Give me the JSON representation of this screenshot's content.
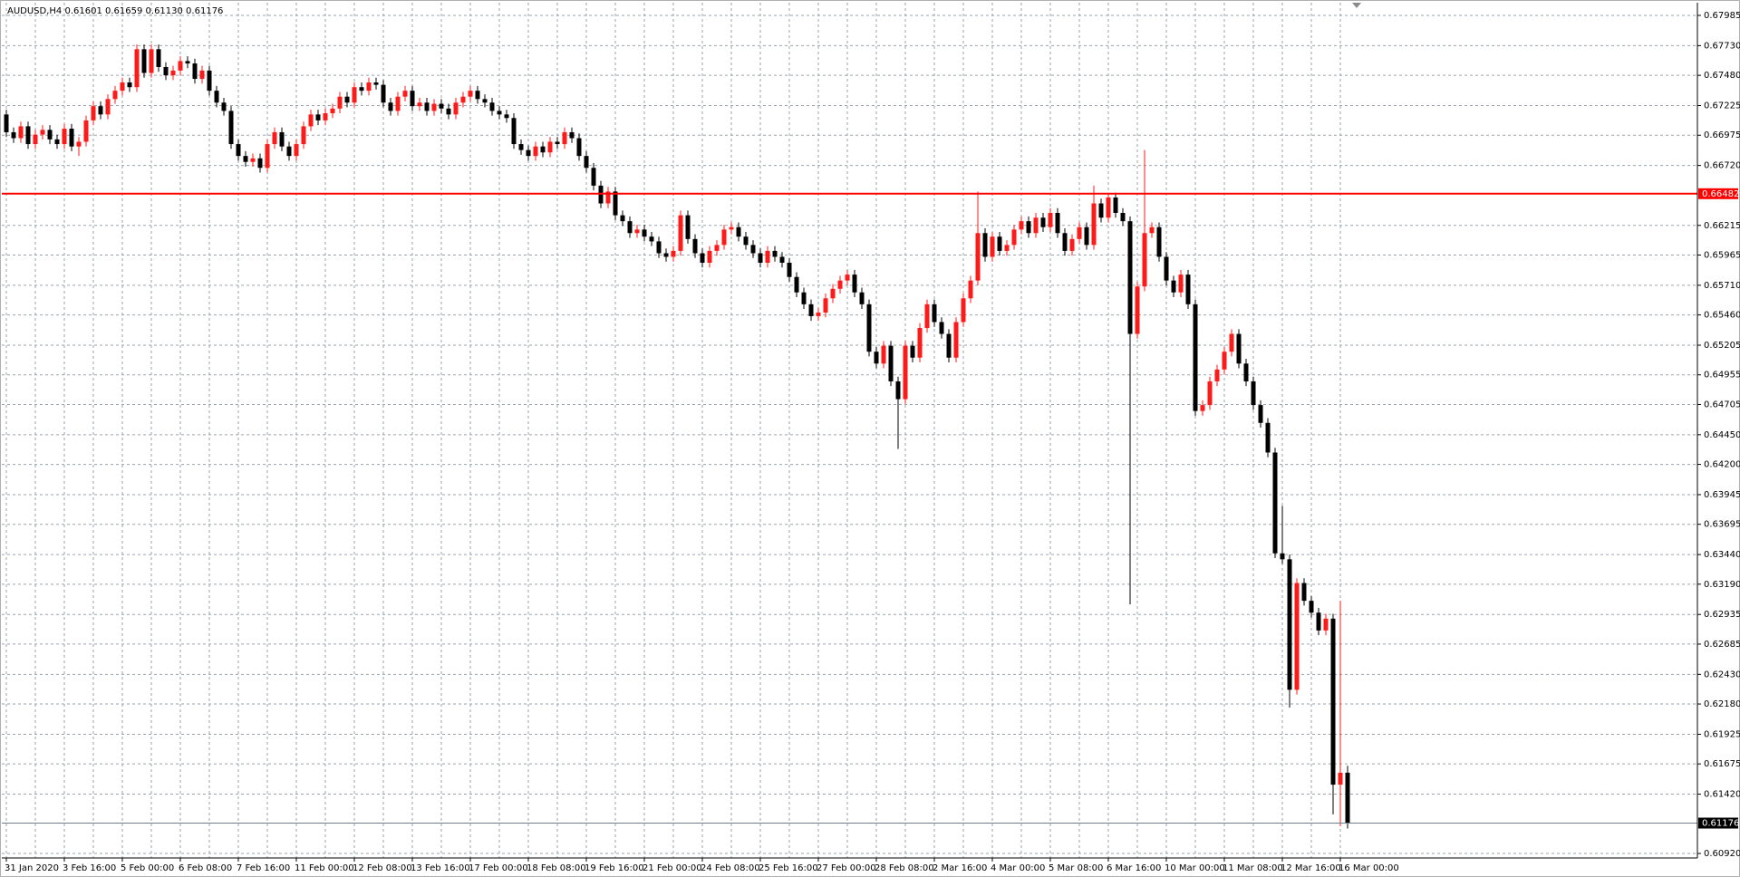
{
  "chart_data": {
    "type": "candlestick",
    "title": "AUDUSD,H4  0.61601 0.61659 0.61130 0.61176",
    "up_color": "#ff1a1a",
    "down_color": "#000000",
    "grid": true,
    "ylim": [
      0.60882,
      0.68092
    ],
    "yticks": [
      {
        "value": 0.67985,
        "label": "0.67985"
      },
      {
        "value": 0.6773,
        "label": "0.67730"
      },
      {
        "value": 0.6748,
        "label": "0.67480"
      },
      {
        "value": 0.67225,
        "label": "0.67225"
      },
      {
        "value": 0.66975,
        "label": "0.66975"
      },
      {
        "value": 0.6672,
        "label": "0.66720"
      },
      {
        "value": 0.66215,
        "label": "0.66215"
      },
      {
        "value": 0.65965,
        "label": "0.65965"
      },
      {
        "value": 0.6571,
        "label": "0.65710"
      },
      {
        "value": 0.6546,
        "label": "0.65460"
      },
      {
        "value": 0.65205,
        "label": "0.65205"
      },
      {
        "value": 0.64955,
        "label": "0.64955"
      },
      {
        "value": 0.64705,
        "label": "0.64705"
      },
      {
        "value": 0.6445,
        "label": "0.64450"
      },
      {
        "value": 0.642,
        "label": "0.64200"
      },
      {
        "value": 0.63945,
        "label": "0.63945"
      },
      {
        "value": 0.63695,
        "label": "0.63695"
      },
      {
        "value": 0.6344,
        "label": "0.63440"
      },
      {
        "value": 0.6319,
        "label": "0.63190"
      },
      {
        "value": 0.62935,
        "label": "0.62935"
      },
      {
        "value": 0.62685,
        "label": "0.62685"
      },
      {
        "value": 0.6243,
        "label": "0.62430"
      },
      {
        "value": 0.6218,
        "label": "0.62180"
      },
      {
        "value": 0.61925,
        "label": "0.61925"
      },
      {
        "value": 0.61675,
        "label": "0.61675"
      },
      {
        "value": 0.6142,
        "label": "0.61420"
      },
      {
        "value": 0.6092,
        "label": "0.60920"
      }
    ],
    "level_line": {
      "value": 0.66482,
      "color": "#ff0000"
    },
    "price_line": {
      "value": 0.61176,
      "color": "#6f8191"
    },
    "categories": [
      "31 Jan 2020",
      null,
      null,
      null,
      null,
      null,
      null,
      null,
      "3 Feb 16:00",
      null,
      null,
      null,
      null,
      null,
      null,
      null,
      "5 Feb 00:00",
      null,
      null,
      null,
      null,
      null,
      null,
      null,
      "6 Feb 08:00",
      null,
      null,
      null,
      null,
      null,
      null,
      null,
      "7 Feb 16:00",
      null,
      null,
      null,
      null,
      null,
      null,
      null,
      "11 Feb 00:00",
      null,
      null,
      null,
      null,
      null,
      null,
      null,
      "12 Feb 08:00",
      null,
      null,
      null,
      null,
      null,
      null,
      null,
      "13 Feb 16:00",
      null,
      null,
      null,
      null,
      null,
      null,
      null,
      "17 Feb 00:00",
      null,
      null,
      null,
      null,
      null,
      null,
      null,
      "18 Feb 08:00",
      null,
      null,
      null,
      null,
      null,
      null,
      null,
      "19 Feb 16:00",
      null,
      null,
      null,
      null,
      null,
      null,
      null,
      "21 Feb 00:00",
      null,
      null,
      null,
      null,
      null,
      null,
      null,
      "24 Feb 08:00",
      null,
      null,
      null,
      null,
      null,
      null,
      null,
      "25 Feb 16:00",
      null,
      null,
      null,
      null,
      null,
      null,
      null,
      "27 Feb 00:00",
      null,
      null,
      null,
      null,
      null,
      null,
      null,
      "28 Feb 08:00",
      null,
      null,
      null,
      null,
      null,
      null,
      null,
      "2 Mar 16:00",
      null,
      null,
      null,
      null,
      null,
      null,
      null,
      "4 Mar 00:00",
      null,
      null,
      null,
      null,
      null,
      null,
      null,
      "5 Mar 08:00",
      null,
      null,
      null,
      null,
      null,
      null,
      null,
      "6 Mar 16:00",
      null,
      null,
      null,
      null,
      null,
      null,
      null,
      "10 Mar 00:00",
      null,
      null,
      null,
      null,
      null,
      null,
      null,
      "11 Mar 08:00",
      null,
      null,
      null,
      null,
      null,
      null,
      null,
      "12 Mar 16:00",
      null,
      null,
      null,
      null,
      null,
      null,
      null,
      "16 Mar 00:00",
      null
    ],
    "candles": [
      [
        0.6715,
        0.6719,
        0.6696,
        0.67
      ],
      [
        0.67,
        0.6704,
        0.6691,
        0.6695
      ],
      [
        0.6695,
        0.6709,
        0.6691,
        0.6705
      ],
      [
        0.6705,
        0.6709,
        0.6686,
        0.669
      ],
      [
        0.669,
        0.6702,
        0.6686,
        0.6698
      ],
      [
        0.6698,
        0.6706,
        0.6694,
        0.6702
      ],
      [
        0.6702,
        0.6706,
        0.669,
        0.6694
      ],
      [
        0.6694,
        0.6698,
        0.6686,
        0.669
      ],
      [
        0.669,
        0.6707,
        0.6686,
        0.6703
      ],
      [
        0.6703,
        0.6707,
        0.6684,
        0.6688
      ],
      [
        0.6688,
        0.6696,
        0.668,
        0.6692
      ],
      [
        0.6692,
        0.6714,
        0.6688,
        0.671
      ],
      [
        0.671,
        0.6726,
        0.6706,
        0.6722
      ],
      [
        0.6722,
        0.6726,
        0.6711,
        0.6715
      ],
      [
        0.6715,
        0.6732,
        0.6711,
        0.6728
      ],
      [
        0.6728,
        0.6739,
        0.6724,
        0.6735
      ],
      [
        0.6735,
        0.6746,
        0.6731,
        0.6742
      ],
      [
        0.6742,
        0.6746,
        0.6734,
        0.6738
      ],
      [
        0.6738,
        0.6774,
        0.6734,
        0.677
      ],
      [
        0.677,
        0.6774,
        0.6746,
        0.675
      ],
      [
        0.675,
        0.6774,
        0.6746,
        0.677
      ],
      [
        0.677,
        0.6774,
        0.6751,
        0.6755
      ],
      [
        0.6755,
        0.6759,
        0.6744,
        0.6748
      ],
      [
        0.6748,
        0.6756,
        0.6744,
        0.6752
      ],
      [
        0.6752,
        0.6764,
        0.6748,
        0.676
      ],
      [
        0.676,
        0.6764,
        0.6754,
        0.6758
      ],
      [
        0.6758,
        0.6762,
        0.6741,
        0.6745
      ],
      [
        0.6745,
        0.6756,
        0.6741,
        0.6752
      ],
      [
        0.6752,
        0.6756,
        0.6731,
        0.6735
      ],
      [
        0.6735,
        0.6739,
        0.6721,
        0.6725
      ],
      [
        0.6725,
        0.6729,
        0.6714,
        0.6718
      ],
      [
        0.6718,
        0.6722,
        0.6686,
        0.669
      ],
      [
        0.669,
        0.6694,
        0.6676,
        0.668
      ],
      [
        0.668,
        0.6684,
        0.6671,
        0.6675
      ],
      [
        0.6675,
        0.6682,
        0.6671,
        0.6678
      ],
      [
        0.6678,
        0.6682,
        0.6666,
        0.667
      ],
      [
        0.667,
        0.6694,
        0.6666,
        0.669
      ],
      [
        0.669,
        0.6704,
        0.6686,
        0.67
      ],
      [
        0.67,
        0.6704,
        0.6684,
        0.6688
      ],
      [
        0.6688,
        0.6692,
        0.6676,
        0.668
      ],
      [
        0.668,
        0.6694,
        0.6676,
        0.669
      ],
      [
        0.669,
        0.6709,
        0.6686,
        0.6705
      ],
      [
        0.6705,
        0.6719,
        0.6701,
        0.6715
      ],
      [
        0.6715,
        0.6719,
        0.6706,
        0.671
      ],
      [
        0.671,
        0.672,
        0.6706,
        0.6716
      ],
      [
        0.6716,
        0.6724,
        0.6712,
        0.672
      ],
      [
        0.672,
        0.6734,
        0.6716,
        0.673
      ],
      [
        0.673,
        0.6734,
        0.6721,
        0.6725
      ],
      [
        0.6725,
        0.6742,
        0.6721,
        0.6738
      ],
      [
        0.6738,
        0.6742,
        0.6731,
        0.6735
      ],
      [
        0.6735,
        0.6746,
        0.6731,
        0.6742
      ],
      [
        0.6742,
        0.6746,
        0.6736,
        0.674
      ],
      [
        0.674,
        0.6744,
        0.6721,
        0.6725
      ],
      [
        0.6725,
        0.6729,
        0.6714,
        0.6718
      ],
      [
        0.6718,
        0.6734,
        0.6714,
        0.673
      ],
      [
        0.673,
        0.6739,
        0.6726,
        0.6735
      ],
      [
        0.6735,
        0.6739,
        0.6718,
        0.6722
      ],
      [
        0.6722,
        0.6729,
        0.6718,
        0.6725
      ],
      [
        0.6725,
        0.6729,
        0.6714,
        0.6718
      ],
      [
        0.6718,
        0.6728,
        0.6714,
        0.6724
      ],
      [
        0.6724,
        0.6728,
        0.6716,
        0.672
      ],
      [
        0.672,
        0.6724,
        0.6711,
        0.6715
      ],
      [
        0.6715,
        0.6729,
        0.6711,
        0.6725
      ],
      [
        0.6725,
        0.6734,
        0.6721,
        0.673
      ],
      [
        0.673,
        0.6739,
        0.6726,
        0.6735
      ],
      [
        0.6735,
        0.6739,
        0.6724,
        0.6728
      ],
      [
        0.6728,
        0.6732,
        0.6721,
        0.6725
      ],
      [
        0.6725,
        0.6729,
        0.6714,
        0.6718
      ],
      [
        0.6718,
        0.6722,
        0.6711,
        0.6715
      ],
      [
        0.6715,
        0.6719,
        0.6708,
        0.6712
      ],
      [
        0.6712,
        0.6716,
        0.6686,
        0.669
      ],
      [
        0.669,
        0.6694,
        0.6681,
        0.6685
      ],
      [
        0.6685,
        0.6689,
        0.6676,
        0.668
      ],
      [
        0.668,
        0.6692,
        0.6676,
        0.6688
      ],
      [
        0.6688,
        0.6692,
        0.6679,
        0.6683
      ],
      [
        0.6683,
        0.6696,
        0.6679,
        0.6692
      ],
      [
        0.6692,
        0.6696,
        0.6686,
        0.669
      ],
      [
        0.669,
        0.6704,
        0.6686,
        0.67
      ],
      [
        0.67,
        0.6704,
        0.6691,
        0.6695
      ],
      [
        0.6695,
        0.6699,
        0.6676,
        0.668
      ],
      [
        0.668,
        0.6684,
        0.6666,
        0.667
      ],
      [
        0.667,
        0.6674,
        0.6651,
        0.6655
      ],
      [
        0.6655,
        0.6659,
        0.6636,
        0.664
      ],
      [
        0.664,
        0.6654,
        0.6636,
        0.665
      ],
      [
        0.665,
        0.6654,
        0.6626,
        0.663
      ],
      [
        0.663,
        0.6634,
        0.6621,
        0.6625
      ],
      [
        0.6625,
        0.6629,
        0.6611,
        0.6615
      ],
      [
        0.6615,
        0.6622,
        0.6611,
        0.6618
      ],
      [
        0.6618,
        0.6622,
        0.6608,
        0.6612
      ],
      [
        0.6612,
        0.6616,
        0.6604,
        0.6608
      ],
      [
        0.6608,
        0.6612,
        0.6594,
        0.6598
      ],
      [
        0.6598,
        0.6602,
        0.6591,
        0.6595
      ],
      [
        0.6595,
        0.6604,
        0.6591,
        0.66
      ],
      [
        0.66,
        0.6634,
        0.6596,
        0.663
      ],
      [
        0.663,
        0.6634,
        0.6606,
        0.661
      ],
      [
        0.661,
        0.6614,
        0.6594,
        0.6598
      ],
      [
        0.6598,
        0.6602,
        0.6586,
        0.659
      ],
      [
        0.659,
        0.6604,
        0.6586,
        0.66
      ],
      [
        0.66,
        0.6609,
        0.6596,
        0.6605
      ],
      [
        0.6605,
        0.6622,
        0.6601,
        0.6618
      ],
      [
        0.6618,
        0.6624,
        0.6614,
        0.662
      ],
      [
        0.662,
        0.6624,
        0.6608,
        0.6612
      ],
      [
        0.6612,
        0.6616,
        0.6601,
        0.6605
      ],
      [
        0.6605,
        0.6609,
        0.6594,
        0.6598
      ],
      [
        0.6598,
        0.6602,
        0.6586,
        0.659
      ],
      [
        0.659,
        0.6604,
        0.6586,
        0.66
      ],
      [
        0.66,
        0.6604,
        0.6591,
        0.6595
      ],
      [
        0.6595,
        0.6599,
        0.6586,
        0.659
      ],
      [
        0.659,
        0.6594,
        0.6574,
        0.6578
      ],
      [
        0.6578,
        0.6582,
        0.6561,
        0.6565
      ],
      [
        0.6565,
        0.6569,
        0.6551,
        0.6555
      ],
      [
        0.6555,
        0.6559,
        0.6541,
        0.6545
      ],
      [
        0.6545,
        0.6552,
        0.6541,
        0.6548
      ],
      [
        0.6548,
        0.6564,
        0.6544,
        0.656
      ],
      [
        0.656,
        0.6572,
        0.6556,
        0.6568
      ],
      [
        0.6568,
        0.6579,
        0.6564,
        0.6575
      ],
      [
        0.6575,
        0.6584,
        0.6571,
        0.658
      ],
      [
        0.658,
        0.6584,
        0.6561,
        0.6565
      ],
      [
        0.6565,
        0.6569,
        0.6551,
        0.6555
      ],
      [
        0.6555,
        0.6559,
        0.6511,
        0.6515
      ],
      [
        0.6515,
        0.6519,
        0.6501,
        0.6505
      ],
      [
        0.6505,
        0.6524,
        0.6501,
        0.652
      ],
      [
        0.652,
        0.6524,
        0.6486,
        0.649
      ],
      [
        0.649,
        0.6494,
        0.6433,
        0.6475
      ],
      [
        0.6475,
        0.6524,
        0.6471,
        0.652
      ],
      [
        0.652,
        0.6524,
        0.6506,
        0.651
      ],
      [
        0.651,
        0.6539,
        0.6506,
        0.6535
      ],
      [
        0.6535,
        0.6559,
        0.6531,
        0.6555
      ],
      [
        0.6555,
        0.6559,
        0.6536,
        0.654
      ],
      [
        0.654,
        0.6544,
        0.6526,
        0.653
      ],
      [
        0.653,
        0.6534,
        0.6506,
        0.651
      ],
      [
        0.651,
        0.6544,
        0.6506,
        0.654
      ],
      [
        0.654,
        0.6564,
        0.6536,
        0.656
      ],
      [
        0.656,
        0.6579,
        0.6556,
        0.6575
      ],
      [
        0.6575,
        0.665,
        0.6571,
        0.6615
      ],
      [
        0.6615,
        0.6619,
        0.6591,
        0.6595
      ],
      [
        0.6595,
        0.6616,
        0.6591,
        0.6612
      ],
      [
        0.6612,
        0.6616,
        0.6596,
        0.66
      ],
      [
        0.66,
        0.6609,
        0.6596,
        0.6605
      ],
      [
        0.6605,
        0.6622,
        0.6601,
        0.6618
      ],
      [
        0.6618,
        0.6629,
        0.6614,
        0.6625
      ],
      [
        0.6625,
        0.6629,
        0.6611,
        0.6615
      ],
      [
        0.6615,
        0.6632,
        0.6611,
        0.6628
      ],
      [
        0.6628,
        0.6632,
        0.6616,
        0.662
      ],
      [
        0.662,
        0.6636,
        0.6616,
        0.6632
      ],
      [
        0.6632,
        0.6636,
        0.6611,
        0.6615
      ],
      [
        0.6615,
        0.6619,
        0.6596,
        0.66
      ],
      [
        0.66,
        0.6614,
        0.6596,
        0.661
      ],
      [
        0.661,
        0.6624,
        0.6606,
        0.662
      ],
      [
        0.662,
        0.6624,
        0.6601,
        0.6605
      ],
      [
        0.6605,
        0.6655,
        0.6601,
        0.664
      ],
      [
        0.664,
        0.6644,
        0.6624,
        0.6628
      ],
      [
        0.6628,
        0.6649,
        0.6624,
        0.6645
      ],
      [
        0.6645,
        0.6649,
        0.6628,
        0.6632
      ],
      [
        0.6632,
        0.6636,
        0.6621,
        0.6625
      ],
      [
        0.6625,
        0.6629,
        0.6302,
        0.653
      ],
      [
        0.653,
        0.6574,
        0.6526,
        0.657
      ],
      [
        0.657,
        0.6685,
        0.6566,
        0.6615
      ],
      [
        0.6615,
        0.6624,
        0.6611,
        0.662
      ],
      [
        0.662,
        0.6624,
        0.6591,
        0.6595
      ],
      [
        0.6595,
        0.6599,
        0.6571,
        0.6575
      ],
      [
        0.6575,
        0.6579,
        0.6561,
        0.6565
      ],
      [
        0.6565,
        0.6584,
        0.6561,
        0.658
      ],
      [
        0.658,
        0.6584,
        0.6551,
        0.6555
      ],
      [
        0.6555,
        0.6559,
        0.6461,
        0.6465
      ],
      [
        0.6465,
        0.6474,
        0.6461,
        0.647
      ],
      [
        0.647,
        0.6494,
        0.6466,
        0.649
      ],
      [
        0.649,
        0.6504,
        0.6486,
        0.65
      ],
      [
        0.65,
        0.6519,
        0.6496,
        0.6515
      ],
      [
        0.6515,
        0.6534,
        0.6511,
        0.653
      ],
      [
        0.653,
        0.6534,
        0.6501,
        0.6505
      ],
      [
        0.6505,
        0.6509,
        0.6486,
        0.649
      ],
      [
        0.649,
        0.6494,
        0.6466,
        0.647
      ],
      [
        0.647,
        0.6474,
        0.6451,
        0.6455
      ],
      [
        0.6455,
        0.6459,
        0.6426,
        0.643
      ],
      [
        0.643,
        0.6434,
        0.6341,
        0.6345
      ],
      [
        0.6345,
        0.6385,
        0.6336,
        0.634
      ],
      [
        0.634,
        0.6344,
        0.6215,
        0.623
      ],
      [
        0.623,
        0.6324,
        0.6226,
        0.632
      ],
      [
        0.632,
        0.6324,
        0.6301,
        0.6305
      ],
      [
        0.6305,
        0.6309,
        0.6291,
        0.6295
      ],
      [
        0.6295,
        0.6299,
        0.6276,
        0.628
      ],
      [
        0.628,
        0.6294,
        0.6276,
        0.629
      ],
      [
        0.629,
        0.6294,
        0.6125,
        0.615
      ],
      [
        0.615,
        0.6305,
        0.6115,
        0.61601
      ],
      [
        0.61601,
        0.61659,
        0.6113,
        0.61176
      ]
    ]
  }
}
